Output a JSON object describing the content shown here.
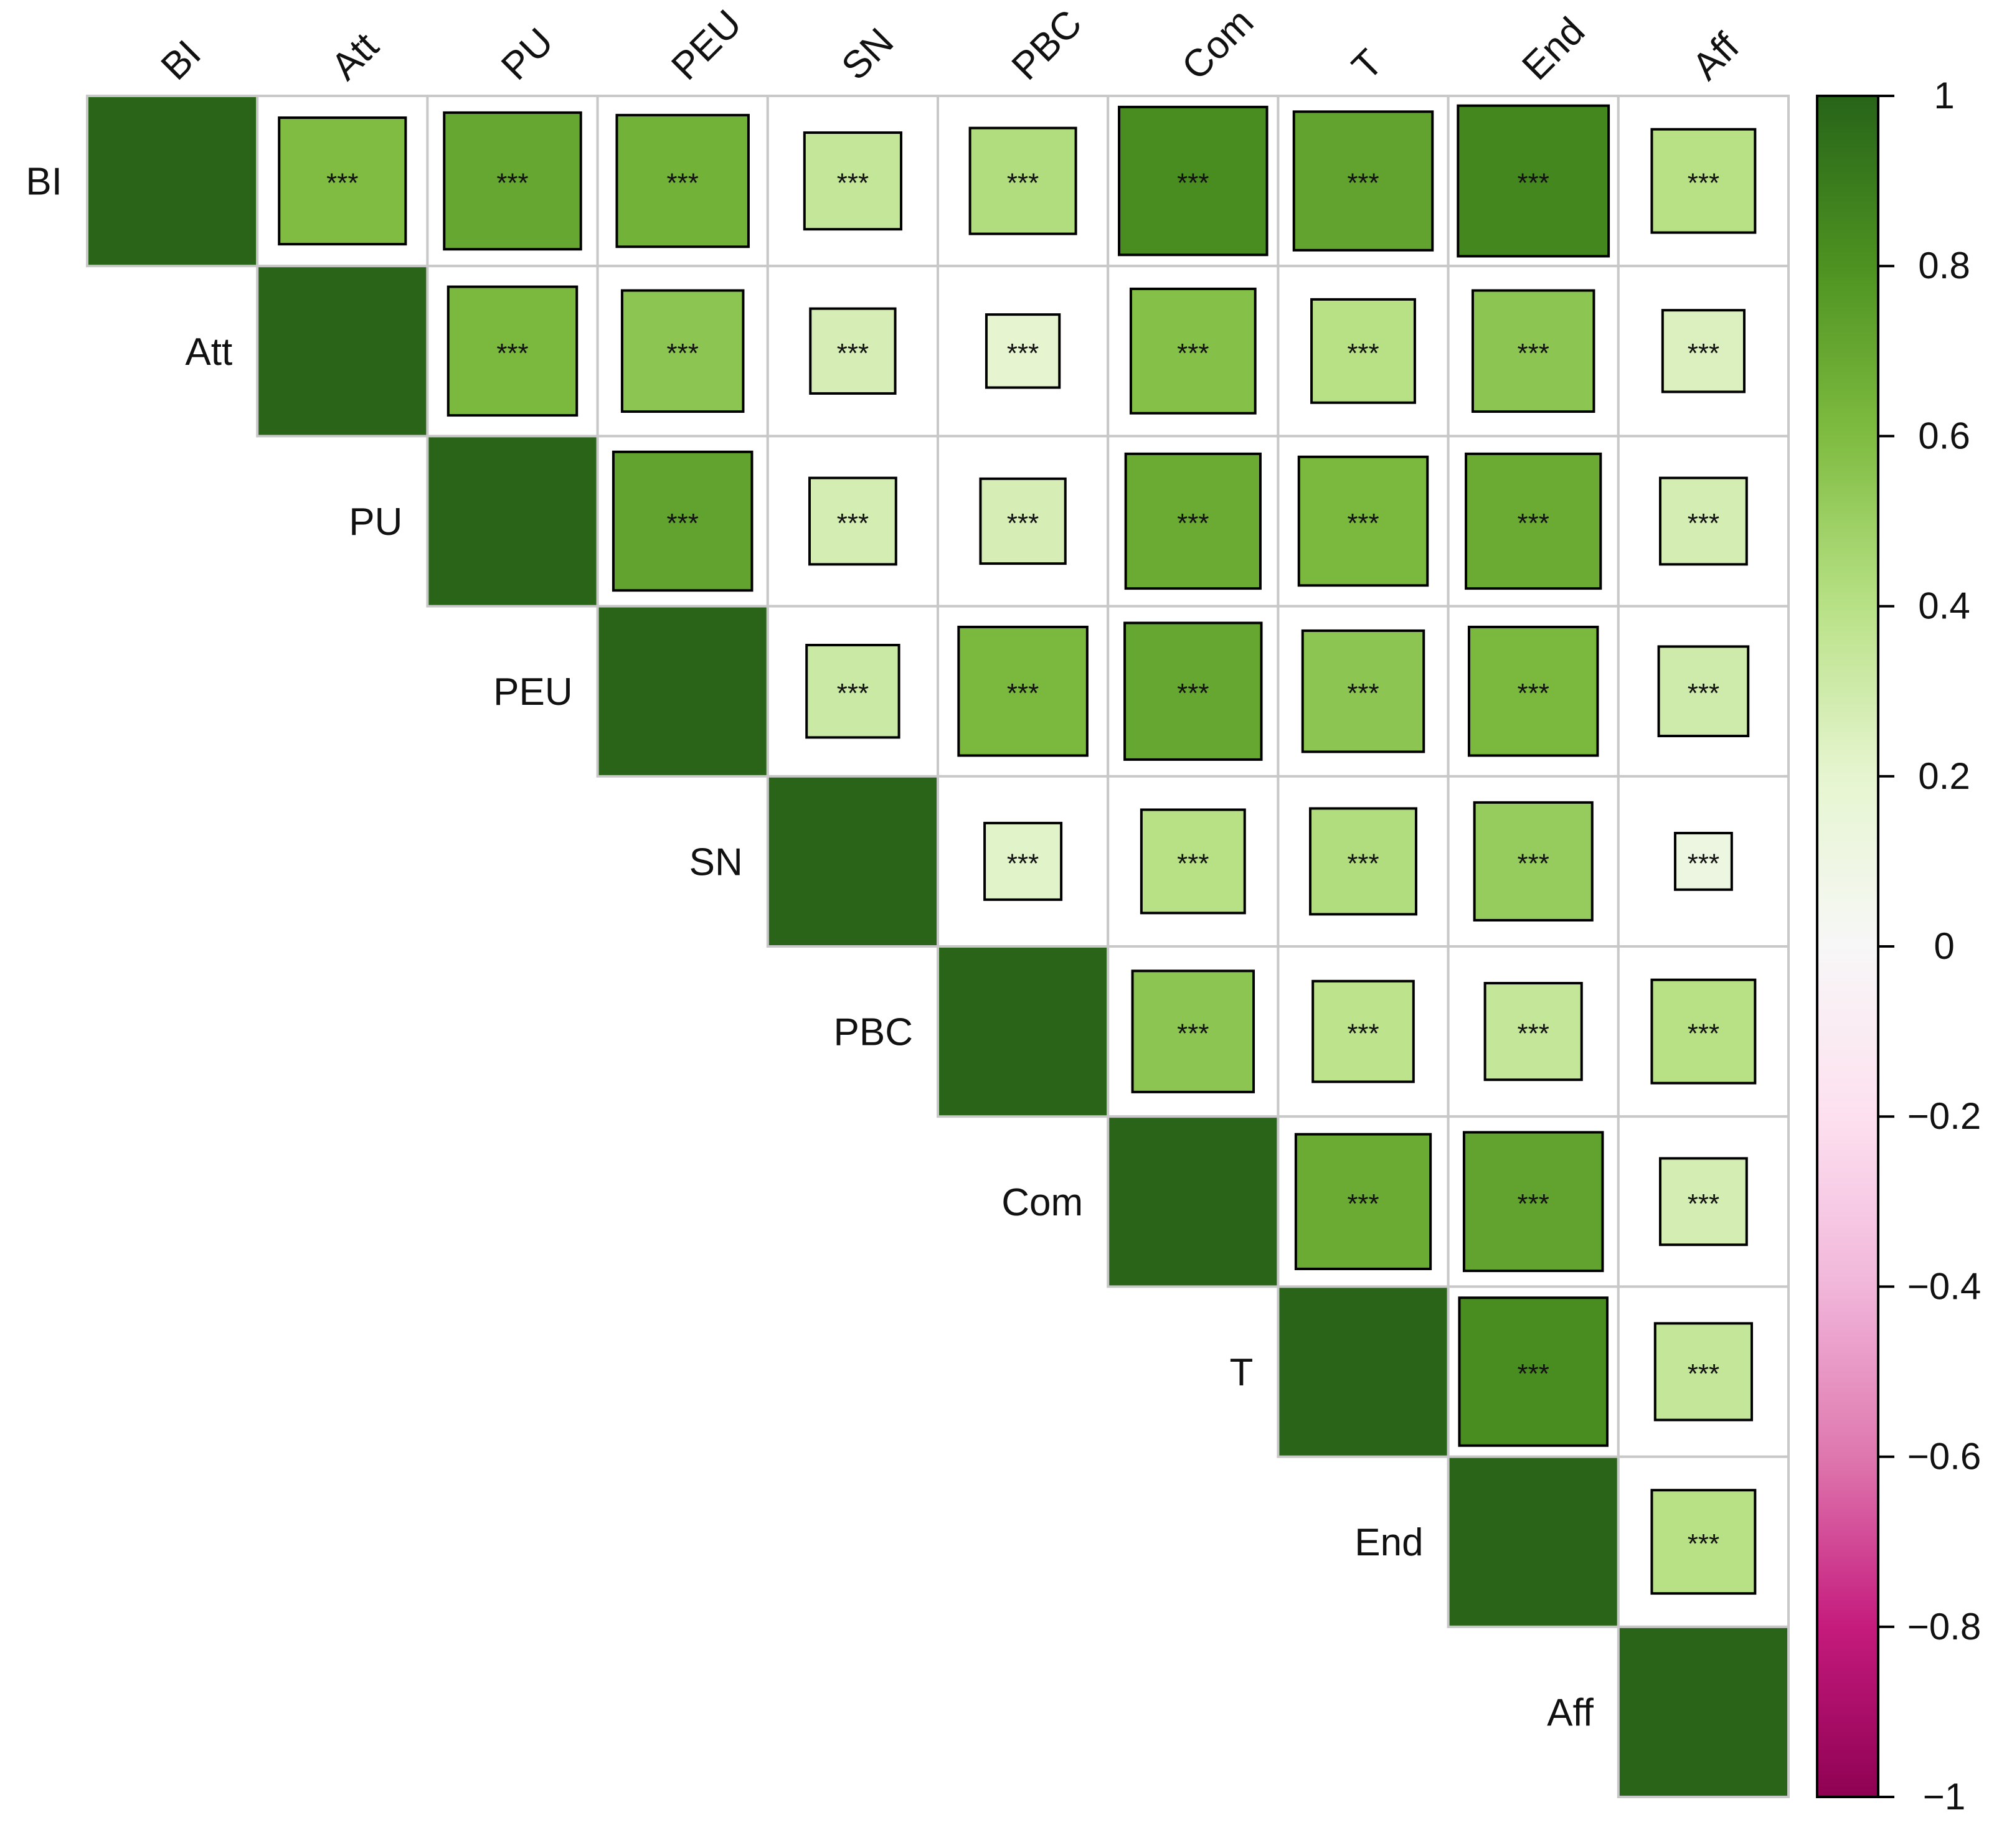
{
  "chart_data": {
    "type": "heatmap",
    "variables": [
      "BI",
      "Att",
      "PU",
      "PEU",
      "SN",
      "PBC",
      "Com",
      "T",
      "End",
      "Aff"
    ],
    "correlations": [
      [
        1.0,
        0.6,
        0.7,
        0.65,
        0.35,
        0.42,
        0.82,
        0.72,
        0.85,
        0.4
      ],
      [
        null,
        1.0,
        0.62,
        0.55,
        0.27,
        0.2,
        0.58,
        0.4,
        0.55,
        0.25
      ],
      [
        null,
        null,
        1.0,
        0.72,
        0.28,
        0.27,
        0.68,
        0.62,
        0.68,
        0.28
      ],
      [
        null,
        null,
        null,
        1.0,
        0.32,
        0.62,
        0.7,
        0.55,
        0.62,
        0.3
      ],
      [
        null,
        null,
        null,
        null,
        1.0,
        0.22,
        0.4,
        0.42,
        0.52,
        0.12
      ],
      [
        null,
        null,
        null,
        null,
        null,
        1.0,
        0.55,
        0.38,
        0.35,
        0.4
      ],
      [
        null,
        null,
        null,
        null,
        null,
        null,
        1.0,
        0.68,
        0.72,
        0.28
      ],
      [
        null,
        null,
        null,
        null,
        null,
        null,
        null,
        1.0,
        0.82,
        0.35
      ],
      [
        null,
        null,
        null,
        null,
        null,
        null,
        null,
        null,
        1.0,
        0.4
      ],
      [
        null,
        null,
        null,
        null,
        null,
        null,
        null,
        null,
        null,
        1.0
      ]
    ],
    "significance_label": "***",
    "colorbar": {
      "range": [
        -1,
        1
      ],
      "ticks": [
        "1",
        "0.8",
        "0.6",
        "0.4",
        "0.2",
        "0",
        "−0.2",
        "−0.4",
        "−0.6",
        "−0.8",
        "−1"
      ],
      "tick_values": [
        1,
        0.8,
        0.6,
        0.4,
        0.2,
        0,
        -0.2,
        -0.4,
        -0.6,
        -0.8,
        -1
      ],
      "negative_color": "#8e0152",
      "mid_color": "#f7f7f7",
      "positive_color": "#276419"
    },
    "diagonal_color": "#2a6419",
    "grid_color": "#c8c8c8",
    "layout": "upper-triangle"
  }
}
